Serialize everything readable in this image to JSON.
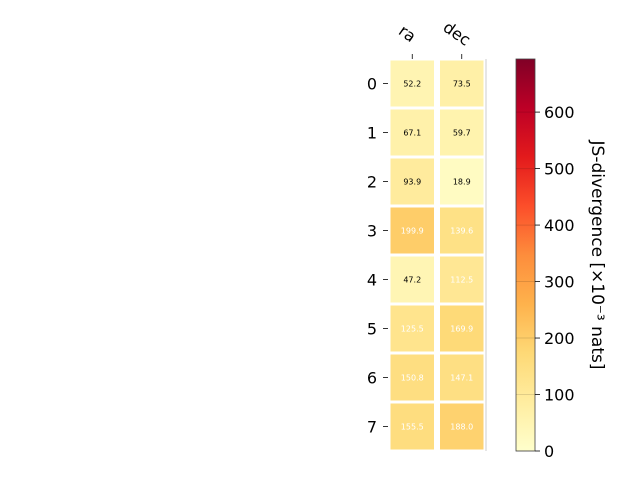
{
  "chart_data": {
    "type": "heatmap",
    "x_categories": [
      "ra",
      "dec"
    ],
    "y_categories": [
      "0",
      "1",
      "2",
      "3",
      "4",
      "5",
      "6",
      "7"
    ],
    "values": [
      [
        52.2,
        73.5
      ],
      [
        67.1,
        59.7
      ],
      [
        93.9,
        18.9
      ],
      [
        199.9,
        139.6
      ],
      [
        47.2,
        112.5
      ],
      [
        125.5,
        169.9
      ],
      [
        150.8,
        147.1
      ],
      [
        155.5,
        188.0
      ]
    ],
    "value_labels": [
      [
        "52.2",
        "73.5"
      ],
      [
        "67.1",
        "59.7"
      ],
      [
        "93.9",
        "18.9"
      ],
      [
        "199.9",
        "139.6"
      ],
      [
        "47.2",
        "112.5"
      ],
      [
        "125.5",
        "169.9"
      ],
      [
        "150.8",
        "147.1"
      ],
      [
        "155.5",
        "188.0"
      ]
    ],
    "colorbar": {
      "label": "JS-divergence [×10⁻³ nats]",
      "ticks": [
        "0",
        "100",
        "200",
        "300",
        "400",
        "500",
        "600"
      ],
      "range": [
        0,
        694
      ],
      "colormap": "YlOrRd"
    }
  }
}
